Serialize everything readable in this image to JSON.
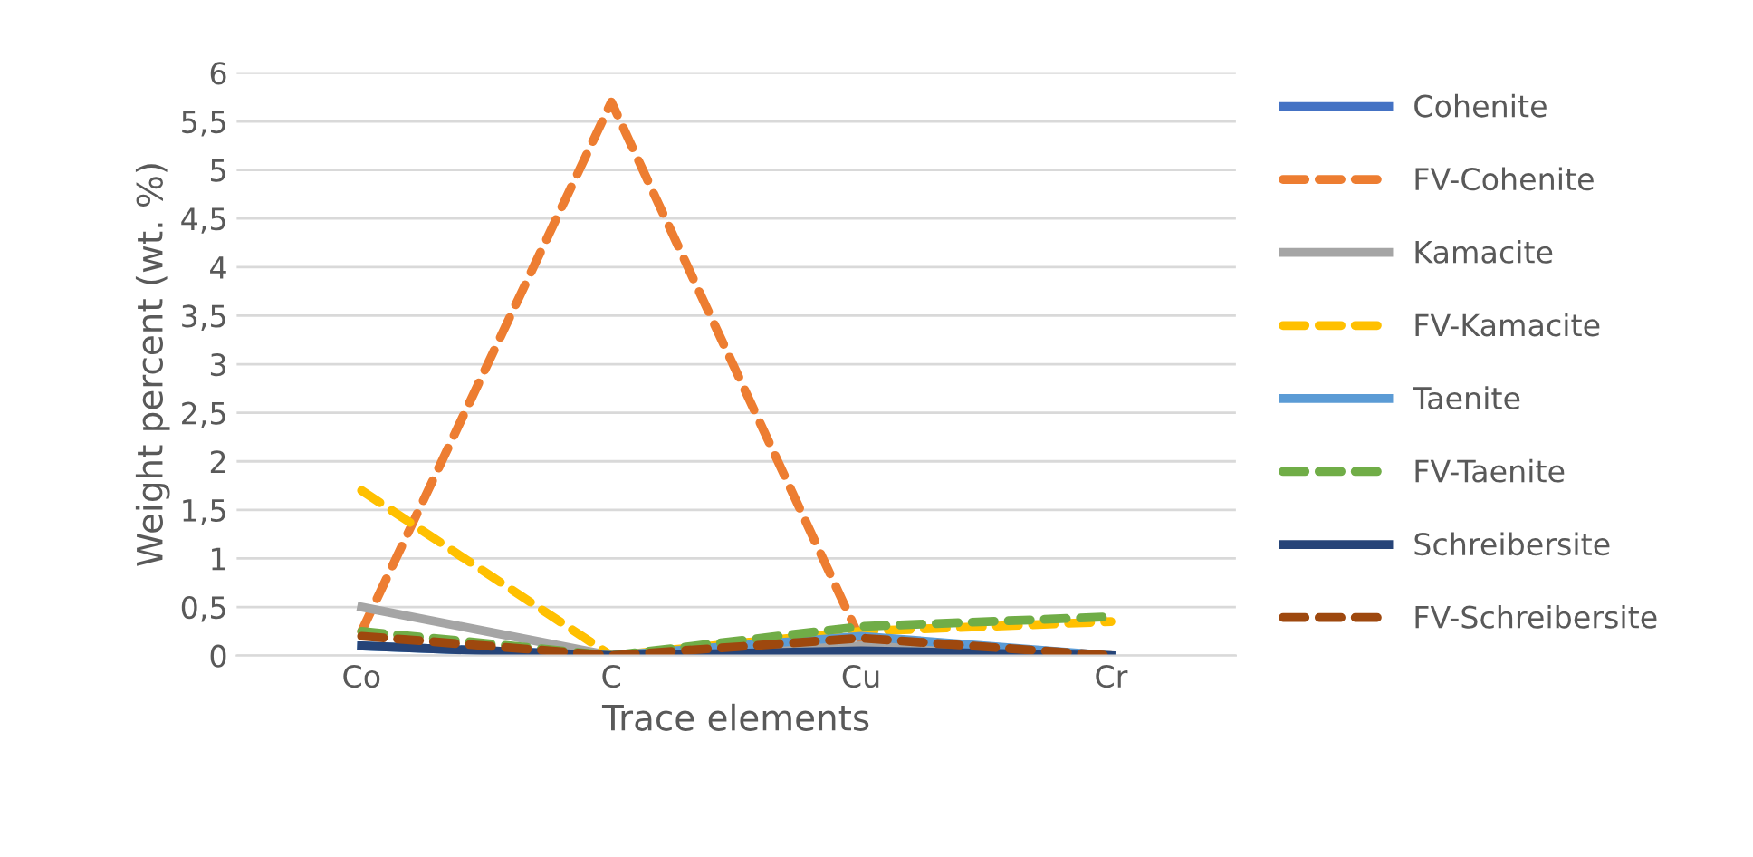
{
  "chart_data": {
    "type": "line",
    "xlabel": "Trace elements",
    "ylabel": "Weight percent (wt. %)",
    "categories": [
      "Co",
      "C",
      "Cu",
      "Cr"
    ],
    "series": [
      {
        "name": "Cohenite",
        "color": "#4472c4",
        "line_style": "solid",
        "values": [
          null,
          null,
          null,
          null
        ]
      },
      {
        "name": "FV-Cohenite",
        "color": "#ed7d31",
        "line_style": "dashed",
        "values": [
          0.25,
          5.7,
          0.15,
          0.0
        ]
      },
      {
        "name": "Kamacite",
        "color": "#a5a5a5",
        "line_style": "solid",
        "values": [
          0.5,
          0.0,
          0.1,
          0.0
        ]
      },
      {
        "name": "FV-Kamacite",
        "color": "#ffc000",
        "line_style": "dashed",
        "values": [
          1.7,
          0.0,
          0.25,
          0.35
        ]
      },
      {
        "name": "Taenite",
        "color": "#5b9bd5",
        "line_style": "solid",
        "values": [
          0.1,
          0.0,
          0.2,
          0.0
        ]
      },
      {
        "name": "FV-Taenite",
        "color": "#70ad47",
        "line_style": "dashed",
        "values": [
          0.25,
          0.0,
          0.3,
          0.4
        ]
      },
      {
        "name": "Schreibersite",
        "color": "#264478",
        "line_style": "solid",
        "values": [
          0.1,
          0.0,
          0.05,
          0.0
        ]
      },
      {
        "name": "FV-Schreibersite",
        "color": "#9e480e",
        "line_style": "dashed",
        "values": [
          0.2,
          0.0,
          0.18,
          0.0
        ]
      }
    ],
    "ylim": [
      0,
      6
    ],
    "yticks": [
      0,
      {
        "value": 0.5,
        "label": "0,5"
      },
      1,
      {
        "value": 1.5,
        "label": "1,5"
      },
      2,
      {
        "value": 2.5,
        "label": "2,5"
      },
      3,
      {
        "value": 3.5,
        "label": "3,5"
      },
      4,
      {
        "value": 4.5,
        "label": "4,5"
      },
      5,
      {
        "value": 5.5,
        "label": "5,5"
      },
      6
    ],
    "grid": "y",
    "legend": "right",
    "marker": "none"
  }
}
